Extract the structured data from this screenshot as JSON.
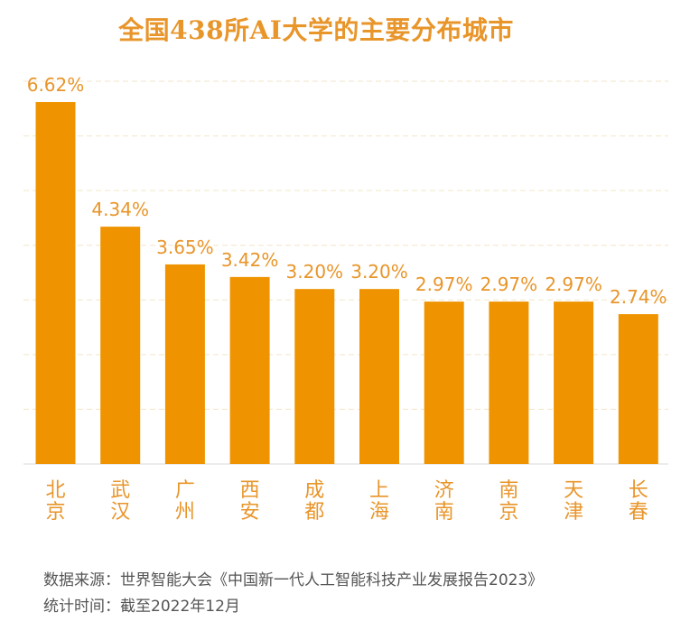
{
  "title": "全国438所AI大学的主要分布城市",
  "footer": {
    "source": "数据来源：世界智能大会《中国新一代人工智能科技产业发展报告2023》",
    "stat_time": "统计时间：截至2022年12月"
  },
  "colors": {
    "bar": "#ef9400",
    "label": "#e8952a",
    "axis_text": "#e8952a",
    "grid": "#f3e6c8"
  },
  "chart_data": {
    "type": "bar",
    "title": "全国438所AI大学的主要分布城市",
    "categories": [
      "北京",
      "武汉",
      "广州",
      "西安",
      "成都",
      "上海",
      "济南",
      "南京",
      "天津",
      "长春"
    ],
    "values": [
      6.62,
      4.34,
      3.65,
      3.42,
      3.2,
      3.2,
      2.97,
      2.97,
      2.97,
      2.74
    ],
    "value_labels": [
      "6.62%",
      "4.34%",
      "3.65%",
      "3.42%",
      "3.20%",
      "3.20%",
      "2.97%",
      "2.97%",
      "2.97%",
      "2.74%"
    ],
    "xlabel": "",
    "ylabel": "",
    "ylim": [
      0,
      7
    ],
    "grid": true,
    "legend": "none"
  }
}
